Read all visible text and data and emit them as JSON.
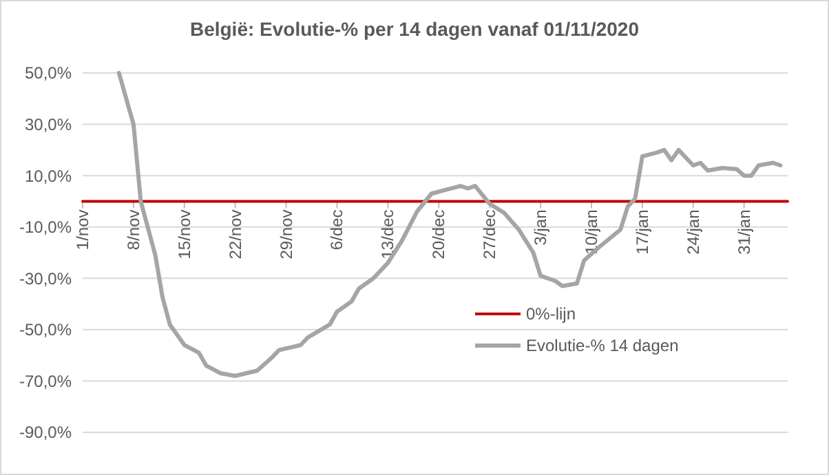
{
  "chart_data": {
    "type": "line",
    "title": "België: Evolutie-% per 14 dagen vanaf 01/11/2020",
    "xlim": [
      "2020-11-01",
      "2021-02-06"
    ],
    "xticks": [
      {
        "value": "2020-11-01",
        "label": "1/nov"
      },
      {
        "value": "2020-11-08",
        "label": "8/nov"
      },
      {
        "value": "2020-11-15",
        "label": "15/nov"
      },
      {
        "value": "2020-11-22",
        "label": "22/nov"
      },
      {
        "value": "2020-11-29",
        "label": "29/nov"
      },
      {
        "value": "2020-12-06",
        "label": "6/dec"
      },
      {
        "value": "2020-12-13",
        "label": "13/dec"
      },
      {
        "value": "2020-12-20",
        "label": "20/dec"
      },
      {
        "value": "2020-12-27",
        "label": "27/dec"
      },
      {
        "value": "2021-01-03",
        "label": "3/jan"
      },
      {
        "value": "2021-01-10",
        "label": "10/jan"
      },
      {
        "value": "2021-01-17",
        "label": "17/jan"
      },
      {
        "value": "2021-01-24",
        "label": "24/jan"
      },
      {
        "value": "2021-01-31",
        "label": "31/jan"
      }
    ],
    "ylim": [
      -90,
      50
    ],
    "yticks": [
      {
        "value": 50,
        "label": "50,0%"
      },
      {
        "value": 30,
        "label": "30,0%"
      },
      {
        "value": 10,
        "label": "10,0%"
      },
      {
        "value": -10,
        "label": "-10,0%"
      },
      {
        "value": -30,
        "label": "-30,0%"
      },
      {
        "value": -50,
        "label": "-50,0%"
      },
      {
        "value": -70,
        "label": "-70,0%"
      },
      {
        "value": -90,
        "label": "-90,0%"
      }
    ],
    "grid": "y",
    "legend": "bottom right",
    "marker": "none",
    "line_style": "solid",
    "series": [
      {
        "name": "0%-lijn",
        "color": "#c00000",
        "x": [
          "2020-11-01",
          "2021-02-06"
        ],
        "values": [
          0,
          0
        ]
      },
      {
        "name": "Evolutie-% 14 dagen",
        "color": "#a5a5a5",
        "x": [
          "2020-11-06",
          "2020-11-08",
          "2020-11-09",
          "2020-11-11",
          "2020-11-12",
          "2020-11-13",
          "2020-11-15",
          "2020-11-17",
          "2020-11-18",
          "2020-11-20",
          "2020-11-22",
          "2020-11-25",
          "2020-11-27",
          "2020-11-28",
          "2020-12-01",
          "2020-12-02",
          "2020-12-05",
          "2020-12-06",
          "2020-12-08",
          "2020-12-09",
          "2020-12-11",
          "2020-12-13",
          "2020-12-15",
          "2020-12-17",
          "2020-12-19",
          "2020-12-21",
          "2020-12-23",
          "2020-12-24",
          "2020-12-25",
          "2020-12-27",
          "2020-12-29",
          "2020-12-31",
          "2021-01-02",
          "2021-01-03",
          "2021-01-05",
          "2021-01-06",
          "2021-01-08",
          "2021-01-09",
          "2021-01-11",
          "2021-01-14",
          "2021-01-15",
          "2021-01-16",
          "2021-01-17",
          "2021-01-19",
          "2021-01-20",
          "2021-01-21",
          "2021-01-22",
          "2021-01-24",
          "2021-01-25",
          "2021-01-26",
          "2021-01-28",
          "2021-01-30",
          "2021-01-31",
          "2021-02-01",
          "2021-02-02",
          "2021-02-04",
          "2021-02-05"
        ],
        "values": [
          50,
          30,
          0,
          -21,
          -37.5,
          -48,
          -56,
          -59,
          -64,
          -67,
          -68,
          -66,
          -61,
          -58,
          -56,
          -53,
          -48,
          -43,
          -39,
          -34,
          -30,
          -24,
          -15,
          -4,
          3,
          4.5,
          6,
          5,
          6,
          -1,
          -4.5,
          -11,
          -20,
          -29,
          -31,
          -33,
          -32,
          -23,
          -18,
          -11,
          -2,
          1,
          17.5,
          19,
          20,
          16,
          20,
          14,
          15,
          12,
          13,
          12.5,
          10,
          10,
          14,
          15,
          14
        ]
      }
    ]
  }
}
